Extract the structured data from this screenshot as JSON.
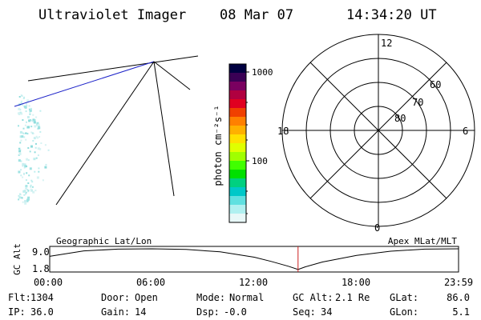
{
  "header": {
    "instrument": "Ultraviolet Imager",
    "date": "08 Mar 07",
    "time": "14:34:20 UT"
  },
  "colorbar": {
    "unit_label": "photon cm⁻²s⁻¹",
    "tick_labels": [
      "1000",
      "100"
    ],
    "colors": [
      "#000040",
      "#3a0055",
      "#7a0060",
      "#b00040",
      "#e00020",
      "#f04000",
      "#ff8000",
      "#ffb000",
      "#ffe000",
      "#e0ff00",
      "#a0ff00",
      "#40ff00",
      "#00e000",
      "#00d080",
      "#00c8c8",
      "#60e0e0",
      "#b0f0f0",
      "#e8f8f8"
    ]
  },
  "polar_plot": {
    "mlt_labels": [
      "12",
      "18",
      "6",
      "0"
    ],
    "lat_labels": [
      "60",
      "70",
      "80"
    ]
  },
  "timeline": {
    "left_label": "Geographic Lat/Lon",
    "right_label": "Apex MLat/MLT",
    "ylabel": "GC Alt",
    "ytick_labels": [
      "9.0",
      "1.8"
    ],
    "xtick_labels": [
      "00:00",
      "06:00",
      "12:00",
      "18:00",
      "23:59"
    ],
    "marker_time": "14:34:20"
  },
  "chart_data": {
    "type": "line",
    "title": "",
    "xlabel": "",
    "ylabel": "GC Alt",
    "xlim": [
      "00:00",
      "23:59"
    ],
    "ylim": [
      1.8,
      9.0
    ],
    "x": [
      "00:00",
      "02:00",
      "04:00",
      "06:00",
      "08:00",
      "10:00",
      "12:00",
      "13:00",
      "14:00",
      "14:34",
      "15:00",
      "16:00",
      "18:00",
      "20:00",
      "22:00",
      "23:59"
    ],
    "series": [
      {
        "values": [
          6.5,
          8.3,
          8.9,
          9.0,
          8.8,
          8.0,
          6.2,
          4.8,
          3.2,
          2.1,
          3.0,
          4.6,
          6.8,
          8.2,
          8.9,
          9.0
        ]
      }
    ],
    "marker": {
      "x": "14:34",
      "color": "#cc2020"
    }
  },
  "footer": {
    "rows": [
      [
        {
          "label": "Flt:",
          "value": "1304"
        },
        {
          "label": "Door:",
          "value": "Open"
        },
        {
          "label": "Mode:",
          "value": "Normal"
        },
        {
          "label": "GC Alt:",
          "value": "2.1 Re"
        },
        {
          "label": "GLat:",
          "value": "86.0"
        }
      ],
      [
        {
          "label": "IP:",
          "value": "36.0"
        },
        {
          "label": "Gain:",
          "value": "14"
        },
        {
          "label": "Dsp:",
          "value": "-0.0"
        },
        {
          "label": "Seq:",
          "value": "34"
        },
        {
          "label": "GLon:",
          "value": "5.1"
        }
      ]
    ]
  }
}
